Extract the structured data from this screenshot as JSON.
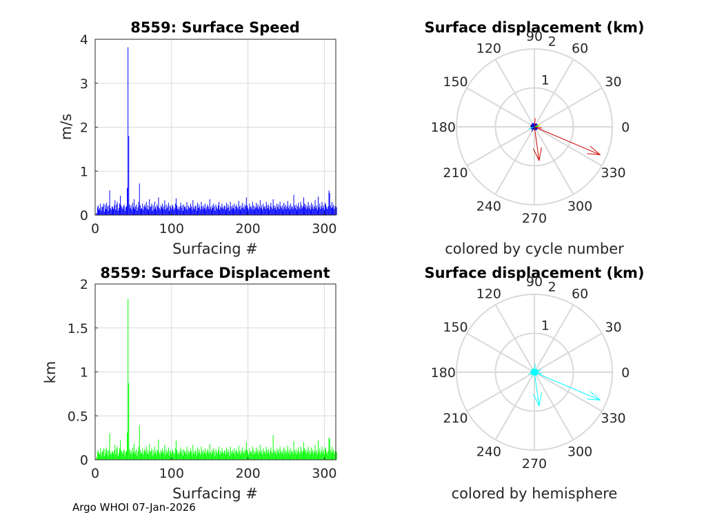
{
  "footer": "Argo WHOI 07-Jan-2026",
  "colors": {
    "speed": "#0000ff",
    "displacement": "#00ff00",
    "cyan": "#00ffff",
    "red": "#cc0000",
    "grid": "#d9d9d9"
  },
  "chart_data": [
    {
      "id": "speed",
      "type": "bar",
      "title": "8559: Surface Speed",
      "xlabel": "Surfacing #",
      "ylabel": "m/s",
      "xlim": [
        0,
        315
      ],
      "ylim": [
        0,
        4
      ],
      "xticks": [
        0,
        100,
        200,
        300
      ],
      "yticks": [
        0,
        1,
        2,
        3,
        4
      ],
      "ytick_labels": [
        "0",
        "1",
        "2",
        "3",
        "4"
      ],
      "grid": true,
      "series": [
        {
          "values": [
            0.02,
            0.05,
            0.18,
            0.22,
            0.12,
            0.16,
            0.26,
            0.1,
            0.18,
            0.2,
            0.26,
            0.08,
            0.24,
            0.14,
            0.28,
            0.2,
            0.1,
            0.22,
            0.56,
            0.16,
            0.12,
            0.2,
            0.18,
            0.14,
            0.22,
            0.34,
            0.12,
            0.24,
            0.3,
            0.1,
            0.16,
            0.26,
            0.44,
            0.22,
            0.18,
            0.14,
            0.2,
            0.24,
            0.1,
            0.18,
            0.2,
            0.62,
            3.82,
            1.8,
            0.24,
            0.16,
            0.22,
            0.12,
            0.28,
            0.18,
            0.36,
            0.14,
            0.2,
            0.24,
            0.1,
            0.18,
            0.3,
            0.72,
            0.22,
            0.14,
            0.16,
            0.26,
            0.12,
            0.2,
            0.24,
            0.18,
            0.3,
            0.14,
            0.22,
            0.12,
            0.36,
            0.18,
            0.2,
            0.26,
            0.1,
            0.22,
            0.14,
            0.3,
            0.18,
            0.12,
            0.24,
            0.2,
            0.4,
            0.16,
            0.12,
            0.22,
            0.18,
            0.26,
            0.14,
            0.2,
            0.34,
            0.12,
            0.24,
            0.16,
            0.2,
            0.28,
            0.1,
            0.22,
            0.18,
            0.14,
            0.24,
            0.2,
            0.12,
            0.16,
            0.26,
            0.38,
            0.22,
            0.14,
            0.18,
            0.12,
            0.2,
            0.28,
            0.16,
            0.22,
            0.1,
            0.24,
            0.18,
            0.2,
            0.14,
            0.3,
            0.12,
            0.22,
            0.18,
            0.16,
            0.26,
            0.2,
            0.12,
            0.34,
            0.18,
            0.14,
            0.22,
            0.2,
            0.1,
            0.28,
            0.16,
            0.24,
            0.18,
            0.12,
            0.3,
            0.2,
            0.14,
            0.22,
            0.16,
            0.26,
            0.12,
            0.18,
            0.24,
            0.2,
            0.14,
            0.36,
            0.18,
            0.12,
            0.22,
            0.16,
            0.26,
            0.2,
            0.1,
            0.24,
            0.18,
            0.14,
            0.22,
            0.3,
            0.12,
            0.2,
            0.16,
            0.26,
            0.18,
            0.14,
            0.22,
            0.2,
            0.12,
            0.28,
            0.16,
            0.24,
            0.18,
            0.1,
            0.3,
            0.2,
            0.14,
            0.22,
            0.16,
            0.26,
            0.12,
            0.2,
            0.24,
            0.18,
            0.14,
            0.32,
            0.2,
            0.12,
            0.22,
            0.16,
            0.28,
            0.18,
            0.14,
            0.24,
            0.2,
            0.4,
            0.22,
            0.16,
            0.12,
            0.26,
            0.18,
            0.2,
            0.14,
            0.3,
            0.22,
            0.12,
            0.2,
            0.16,
            0.28,
            0.18,
            0.24,
            0.14,
            0.2,
            0.34,
            0.16,
            0.22,
            0.12,
            0.26,
            0.18,
            0.2,
            0.14,
            0.3,
            0.22,
            0.16,
            0.24,
            0.12,
            0.2,
            0.28,
            0.18,
            0.14,
            0.36,
            0.22,
            0.16,
            0.2,
            0.12,
            0.26,
            0.18,
            0.24,
            0.14,
            0.3,
            0.2,
            0.16,
            0.22,
            0.12,
            0.28,
            0.18,
            0.24,
            0.14,
            0.2,
            0.32,
            0.16,
            0.22,
            0.12,
            0.26,
            0.18,
            0.2,
            0.14,
            0.46,
            0.22,
            0.16,
            0.24,
            0.12,
            0.2,
            0.28,
            0.18,
            0.14,
            0.3,
            0.22,
            0.16,
            0.2,
            0.4,
            0.26,
            0.18,
            0.24,
            0.14,
            0.2,
            0.3,
            0.16,
            0.22,
            0.12,
            0.28,
            0.18,
            0.24,
            0.14,
            0.2,
            0.34,
            0.16,
            0.22,
            0.12,
            0.42,
            0.18,
            0.26,
            0.14,
            0.2,
            0.3,
            0.16,
            0.22,
            0.12,
            0.28,
            0.24,
            0.18,
            0.14,
            0.2,
            0.56,
            0.5,
            0.22,
            0.16,
            0.3,
            0.18,
            0.24,
            0.14,
            0.2,
            0.26,
            0.18
          ]
        }
      ]
    },
    {
      "id": "displacement",
      "type": "bar",
      "title": "8559: Surface Displacement",
      "xlabel": "Surfacing #",
      "ylabel": "km",
      "xlim": [
        0,
        315
      ],
      "ylim": [
        0,
        2
      ],
      "xticks": [
        0,
        100,
        200,
        300
      ],
      "yticks": [
        0,
        0.5,
        1,
        1.5,
        2
      ],
      "ytick_labels": [
        "0",
        "0.5",
        "1",
        "1.5",
        "2"
      ],
      "grid": true,
      "series": [
        {
          "values": [
            0.01,
            0.03,
            0.09,
            0.11,
            0.06,
            0.08,
            0.13,
            0.05,
            0.09,
            0.1,
            0.13,
            0.04,
            0.12,
            0.07,
            0.14,
            0.1,
            0.05,
            0.11,
            0.3,
            0.08,
            0.06,
            0.1,
            0.09,
            0.07,
            0.11,
            0.17,
            0.06,
            0.12,
            0.15,
            0.05,
            0.08,
            0.13,
            0.22,
            0.11,
            0.09,
            0.07,
            0.1,
            0.12,
            0.05,
            0.09,
            0.1,
            0.31,
            1.83,
            0.87,
            0.12,
            0.08,
            0.11,
            0.06,
            0.14,
            0.09,
            0.18,
            0.07,
            0.1,
            0.12,
            0.05,
            0.09,
            0.15,
            0.39,
            0.11,
            0.07,
            0.08,
            0.13,
            0.06,
            0.1,
            0.12,
            0.09,
            0.15,
            0.07,
            0.11,
            0.06,
            0.18,
            0.09,
            0.1,
            0.13,
            0.05,
            0.11,
            0.07,
            0.15,
            0.09,
            0.06,
            0.12,
            0.1,
            0.23,
            0.08,
            0.06,
            0.11,
            0.09,
            0.13,
            0.07,
            0.1,
            0.17,
            0.06,
            0.12,
            0.08,
            0.1,
            0.14,
            0.05,
            0.11,
            0.09,
            0.07,
            0.12,
            0.1,
            0.06,
            0.08,
            0.13,
            0.22,
            0.11,
            0.07,
            0.09,
            0.06,
            0.1,
            0.14,
            0.08,
            0.11,
            0.05,
            0.12,
            0.09,
            0.1,
            0.07,
            0.15,
            0.06,
            0.11,
            0.09,
            0.08,
            0.13,
            0.1,
            0.06,
            0.17,
            0.09,
            0.07,
            0.11,
            0.1,
            0.05,
            0.14,
            0.08,
            0.12,
            0.09,
            0.06,
            0.15,
            0.1,
            0.07,
            0.11,
            0.08,
            0.13,
            0.06,
            0.09,
            0.12,
            0.1,
            0.07,
            0.18,
            0.09,
            0.06,
            0.11,
            0.08,
            0.13,
            0.1,
            0.05,
            0.12,
            0.09,
            0.07,
            0.11,
            0.15,
            0.06,
            0.1,
            0.08,
            0.13,
            0.09,
            0.07,
            0.11,
            0.1,
            0.06,
            0.14,
            0.08,
            0.12,
            0.09,
            0.05,
            0.15,
            0.1,
            0.07,
            0.11,
            0.08,
            0.13,
            0.06,
            0.1,
            0.12,
            0.09,
            0.07,
            0.16,
            0.1,
            0.06,
            0.11,
            0.08,
            0.14,
            0.09,
            0.07,
            0.12,
            0.1,
            0.2,
            0.11,
            0.08,
            0.06,
            0.13,
            0.09,
            0.1,
            0.07,
            0.15,
            0.11,
            0.06,
            0.1,
            0.08,
            0.14,
            0.09,
            0.12,
            0.07,
            0.1,
            0.17,
            0.08,
            0.11,
            0.06,
            0.13,
            0.09,
            0.1,
            0.07,
            0.15,
            0.11,
            0.08,
            0.12,
            0.06,
            0.1,
            0.14,
            0.09,
            0.07,
            0.28,
            0.11,
            0.08,
            0.1,
            0.06,
            0.13,
            0.09,
            0.12,
            0.07,
            0.15,
            0.1,
            0.08,
            0.11,
            0.06,
            0.14,
            0.09,
            0.12,
            0.07,
            0.1,
            0.16,
            0.08,
            0.11,
            0.06,
            0.13,
            0.09,
            0.1,
            0.07,
            0.21,
            0.11,
            0.08,
            0.12,
            0.06,
            0.1,
            0.14,
            0.09,
            0.07,
            0.15,
            0.11,
            0.08,
            0.1,
            0.2,
            0.13,
            0.09,
            0.12,
            0.07,
            0.1,
            0.15,
            0.08,
            0.11,
            0.06,
            0.14,
            0.09,
            0.12,
            0.07,
            0.1,
            0.17,
            0.08,
            0.11,
            0.06,
            0.22,
            0.09,
            0.13,
            0.07,
            0.1,
            0.15,
            0.08,
            0.11,
            0.06,
            0.14,
            0.12,
            0.09,
            0.07,
            0.1,
            0.25,
            0.24,
            0.11,
            0.08,
            0.15,
            0.09,
            0.12,
            0.07,
            0.1,
            0.13,
            0.09
          ]
        }
      ]
    },
    {
      "id": "polar-cycle",
      "type": "scatter",
      "title": "Surface displacement (km)",
      "subtitle": "colored by cycle number",
      "rlim": [
        0,
        2
      ],
      "rticks": [
        1,
        2
      ],
      "angle_ticks": [
        0,
        30,
        60,
        90,
        120,
        150,
        180,
        210,
        240,
        270,
        300,
        330
      ],
      "arrows": [
        {
          "angle": 337,
          "r": 1.83,
          "color": "#cc0000"
        },
        {
          "angle": 278,
          "r": 0.87,
          "color": "#cc0000"
        },
        {
          "angle": 84,
          "r": 0.22,
          "color": "#ff0000"
        },
        {
          "angle": 20,
          "r": 0.18,
          "color": "#ffff00"
        },
        {
          "angle": 350,
          "r": 0.2,
          "color": "#ff0000"
        },
        {
          "angle": 200,
          "r": 0.16,
          "color": "#00ffff"
        },
        {
          "angle": 120,
          "r": 0.12,
          "color": "#0000ff"
        },
        {
          "angle": 240,
          "r": 0.14,
          "color": "#000080"
        },
        {
          "angle": 300,
          "r": 0.1,
          "color": "#0000ff"
        },
        {
          "angle": 160,
          "r": 0.11,
          "color": "#000080"
        },
        {
          "angle": 45,
          "r": 0.1,
          "color": "#0000cd"
        },
        {
          "angle": 10,
          "r": 0.13,
          "color": "#00ff00"
        }
      ],
      "cluster_r": 0.1,
      "cluster_colors": [
        "#00008b",
        "#0000ff",
        "#0000cd",
        "#1e3a8a",
        "#000080"
      ]
    },
    {
      "id": "polar-hemisphere",
      "type": "scatter",
      "title": "Surface displacement (km)",
      "subtitle": "colored by hemisphere",
      "rlim": [
        0,
        2
      ],
      "rticks": [
        1,
        2
      ],
      "angle_ticks": [
        0,
        30,
        60,
        90,
        120,
        150,
        180,
        210,
        240,
        270,
        300,
        330
      ],
      "arrows": [
        {
          "angle": 337,
          "r": 1.83,
          "color": "#00ffff"
        },
        {
          "angle": 278,
          "r": 0.87,
          "color": "#00ffff"
        },
        {
          "angle": 84,
          "r": 0.22,
          "color": "#00ffff"
        },
        {
          "angle": 20,
          "r": 0.18,
          "color": "#00ffff"
        },
        {
          "angle": 350,
          "r": 0.2,
          "color": "#00ffff"
        },
        {
          "angle": 200,
          "r": 0.16,
          "color": "#00ffff"
        },
        {
          "angle": 120,
          "r": 0.12,
          "color": "#00ffff"
        },
        {
          "angle": 240,
          "r": 0.14,
          "color": "#00ffff"
        },
        {
          "angle": 300,
          "r": 0.1,
          "color": "#00ffff"
        },
        {
          "angle": 160,
          "r": 0.11,
          "color": "#00ffff"
        },
        {
          "angle": 45,
          "r": 0.1,
          "color": "#00ffff"
        },
        {
          "angle": 10,
          "r": 0.13,
          "color": "#00ffff"
        }
      ],
      "cluster_r": 0.1,
      "cluster_colors": [
        "#00ffff"
      ]
    }
  ]
}
